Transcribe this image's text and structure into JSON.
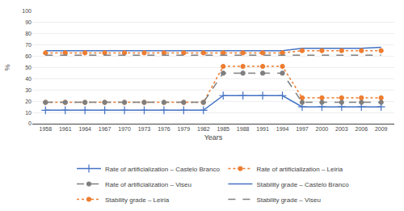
{
  "chart_data": {
    "type": "line",
    "x": [
      1958,
      1961,
      1964,
      1967,
      1970,
      1973,
      1976,
      1979,
      1982,
      1985,
      1988,
      1991,
      1994,
      1997,
      2000,
      2003,
      2006,
      2009
    ],
    "series": [
      {
        "name": "Rate of artificialization – Castelo Branco",
        "color": "#4472C4",
        "marker": "plus",
        "line_style": "solid",
        "values": [
          12,
          12,
          12,
          12,
          12,
          12,
          12,
          12,
          12,
          25,
          25,
          25,
          25,
          15,
          15,
          15,
          15,
          15
        ]
      },
      {
        "name": "Rate of artificialization – Leiria",
        "color": "#ED7D31",
        "marker": "circle",
        "line_style": "dotted",
        "values": [
          19,
          19,
          19,
          19,
          19,
          19,
          19,
          19,
          19,
          51,
          51,
          51,
          51,
          23,
          23,
          23,
          23,
          23
        ]
      },
      {
        "name": "Rate of artificialization – Viseu",
        "color": "#7F7F7F",
        "marker": "circle",
        "line_style": "dashed",
        "values": [
          19,
          19,
          19,
          19,
          19,
          19,
          19,
          19,
          19,
          45,
          45,
          45,
          45,
          19,
          19,
          19,
          19,
          19
        ]
      },
      {
        "name": "Stability grade – Castelo Branco",
        "color": "#4472C4",
        "marker": "none",
        "line_style": "solid",
        "values": [
          65,
          65,
          65,
          65,
          65,
          65,
          65,
          65,
          65,
          65,
          65,
          65,
          65,
          67,
          67,
          67,
          67,
          68
        ]
      },
      {
        "name": "Stability grade – Leiria",
        "color": "#ED7D31",
        "marker": "circle",
        "line_style": "dotted",
        "values": [
          63,
          63,
          63,
          63,
          63,
          63,
          63,
          63,
          63,
          63,
          63,
          63,
          63,
          65,
          65,
          65,
          65,
          65
        ]
      },
      {
        "name": "Stability grade – Viseu",
        "color": "#7F7F7F",
        "marker": "none",
        "line_style": "dashed",
        "values": [
          61,
          61,
          61,
          61,
          61,
          61,
          61,
          61,
          61,
          61,
          61,
          61,
          61,
          61,
          61,
          61,
          61,
          61
        ]
      }
    ],
    "xlabel": "Years",
    "ylabel": "%",
    "xlim": [
      1956,
      2011
    ],
    "xticks": [
      1958,
      1961,
      1964,
      1967,
      1970,
      1973,
      1976,
      1979,
      1982,
      1985,
      1988,
      1991,
      1994,
      1997,
      2000,
      2003,
      2006,
      2009
    ],
    "ylim": [
      0,
      100
    ],
    "yticks": [
      0,
      10,
      20,
      30,
      40,
      50,
      60,
      70,
      80,
      90,
      100
    ],
    "grid": "y",
    "legend": "bottom"
  }
}
